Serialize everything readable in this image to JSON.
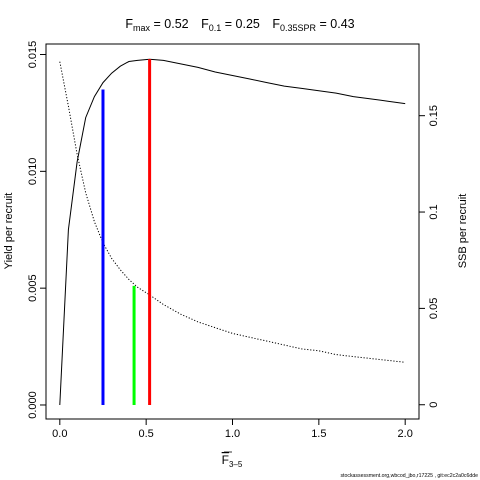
{
  "chart_data": {
    "type": "line",
    "title": {
      "parts": [
        {
          "main": "F",
          "sub": "max",
          "value": " = 0.52"
        },
        {
          "main": "F",
          "sub": "0.1",
          "value": " = 0.25"
        },
        {
          "main": "F",
          "sub": "0.35SPR",
          "value": " = 0.43"
        }
      ]
    },
    "xlabel": {
      "main": "F",
      "sub": "3–5"
    },
    "ylabel_left": "Yield per recruit",
    "ylabel_right": "SSB per recruit",
    "xlim": [
      -0.08,
      2.08
    ],
    "ylim_left": [
      -0.0006,
      0.01545
    ],
    "ylim_right": [
      -0.0074,
      0.1872
    ],
    "x_ticks": [
      {
        "value": 0,
        "label": "0.0"
      },
      {
        "value": 0.5,
        "label": "0.5"
      },
      {
        "value": 1.0,
        "label": "1.0"
      },
      {
        "value": 1.5,
        "label": "1.5"
      },
      {
        "value": 2.0,
        "label": "2.0"
      }
    ],
    "y_left_ticks": [
      {
        "value": 0,
        "label": "0.000"
      },
      {
        "value": 0.005,
        "label": "0.005"
      },
      {
        "value": 0.01,
        "label": "0.010"
      },
      {
        "value": 0.015,
        "label": "0.015"
      }
    ],
    "y_right_ticks": [
      {
        "value": 0,
        "label": "0"
      },
      {
        "value": 0.05,
        "label": "0.05"
      },
      {
        "value": 0.1,
        "label": "0.1"
      },
      {
        "value": 0.15,
        "label": "0.15"
      }
    ],
    "series": [
      {
        "axis": "left",
        "style": "solid",
        "color": "#000000",
        "x": [
          0,
          0.05,
          0.1,
          0.15,
          0.2,
          0.25,
          0.3,
          0.35,
          0.4,
          0.45,
          0.52,
          0.6,
          0.7,
          0.8,
          0.9,
          1.0,
          1.1,
          1.2,
          1.3,
          1.4,
          1.5,
          1.6,
          1.7,
          1.8,
          1.9,
          2.0
        ],
        "y": [
          0,
          0.0075,
          0.0104,
          0.0123,
          0.0132,
          0.0138,
          0.0142,
          0.0145,
          0.0147,
          0.01475,
          0.0148,
          0.01475,
          0.0146,
          0.01445,
          0.01425,
          0.0141,
          0.01395,
          0.0138,
          0.01365,
          0.01355,
          0.01345,
          0.01335,
          0.0132,
          0.0131,
          0.013,
          0.0129
        ]
      },
      {
        "axis": "right",
        "style": "dotted",
        "color": "#000000",
        "x": [
          0,
          0.05,
          0.1,
          0.15,
          0.2,
          0.25,
          0.3,
          0.35,
          0.4,
          0.45,
          0.52,
          0.6,
          0.7,
          0.8,
          0.9,
          1.0,
          1.1,
          1.2,
          1.3,
          1.4,
          1.5,
          1.6,
          1.7,
          1.8,
          1.9,
          2.0
        ],
        "y": [
          0.178,
          0.155,
          0.13,
          0.11,
          0.095,
          0.084,
          0.076,
          0.07,
          0.065,
          0.061,
          0.057,
          0.052,
          0.047,
          0.043,
          0.04,
          0.037,
          0.035,
          0.033,
          0.031,
          0.029,
          0.028,
          0.026,
          0.025,
          0.024,
          0.023,
          0.022
        ]
      }
    ],
    "reference_lines": [
      {
        "name": "F0.1",
        "x": 0.25,
        "y_top": 0.0135,
        "axis": "left",
        "color": "#0000ff"
      },
      {
        "name": "F0.35SPR",
        "x": 0.43,
        "y_top": 0.0051,
        "axis": "left",
        "color": "#00ff00"
      },
      {
        "name": "Fmax",
        "x": 0.52,
        "y_top": 0.0148,
        "axis": "left",
        "color": "#ff0000"
      }
    ]
  },
  "footer_note": "stockassessment.org,wbcod_jbo,r17225 , git:ec2c2a0c6dde"
}
